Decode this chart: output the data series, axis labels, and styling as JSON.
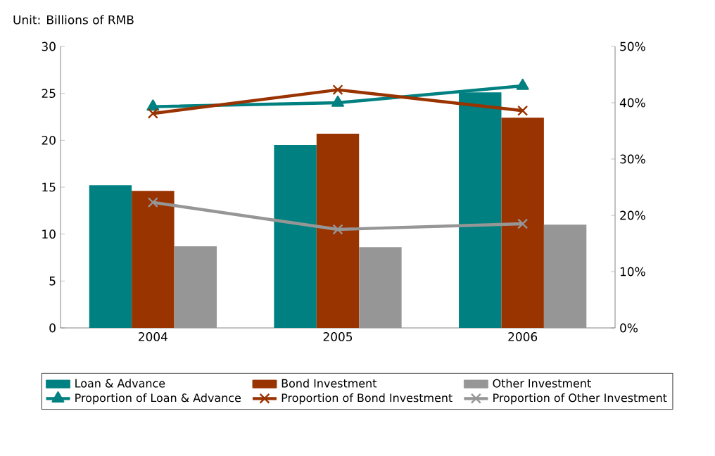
{
  "chart_data": {
    "type": "bar",
    "ylabel": "Unit: Billions of RMB",
    "categories": [
      "2004",
      "2005",
      "2006"
    ],
    "series": [
      {
        "name": "Loan & Advance",
        "color": "#008080",
        "values": [
          15.2,
          19.5,
          25.1
        ]
      },
      {
        "name": "Bond Investment",
        "color": "#993300",
        "values": [
          14.6,
          20.7,
          22.4
        ]
      },
      {
        "name": "Other Investment",
        "color": "#969696",
        "values": [
          8.7,
          8.6,
          11.0
        ]
      },
      {
        "name": "Proportion of Loan & Advance",
        "type": "line",
        "axis": "y2",
        "marker": "triangle",
        "color": "#008080",
        "values": [
          39.3,
          40.0,
          43.0
        ]
      },
      {
        "name": "Proportion of Bond Investment",
        "type": "line",
        "axis": "y2",
        "marker": "cross",
        "color": "#993300",
        "values": [
          38.1,
          42.3,
          38.6
        ]
      },
      {
        "name": "Proportion of Other Investment",
        "type": "line",
        "axis": "y2",
        "marker": "cross",
        "color": "#969696",
        "values": [
          22.3,
          17.5,
          18.5
        ]
      }
    ],
    "ylim": [
      0,
      30
    ],
    "yticks": [
      0,
      5,
      10,
      15,
      20,
      25,
      30
    ],
    "y2lim": [
      0,
      50
    ],
    "y2ticks": [
      {
        "value": 0,
        "label": "0%"
      },
      {
        "value": 10,
        "label": "10%"
      },
      {
        "value": 20,
        "label": "20%"
      },
      {
        "value": 30,
        "label": "30%"
      },
      {
        "value": 40,
        "label": "40%"
      },
      {
        "value": 50,
        "label": "50%"
      }
    ],
    "legend": "bottom",
    "grid": false
  }
}
